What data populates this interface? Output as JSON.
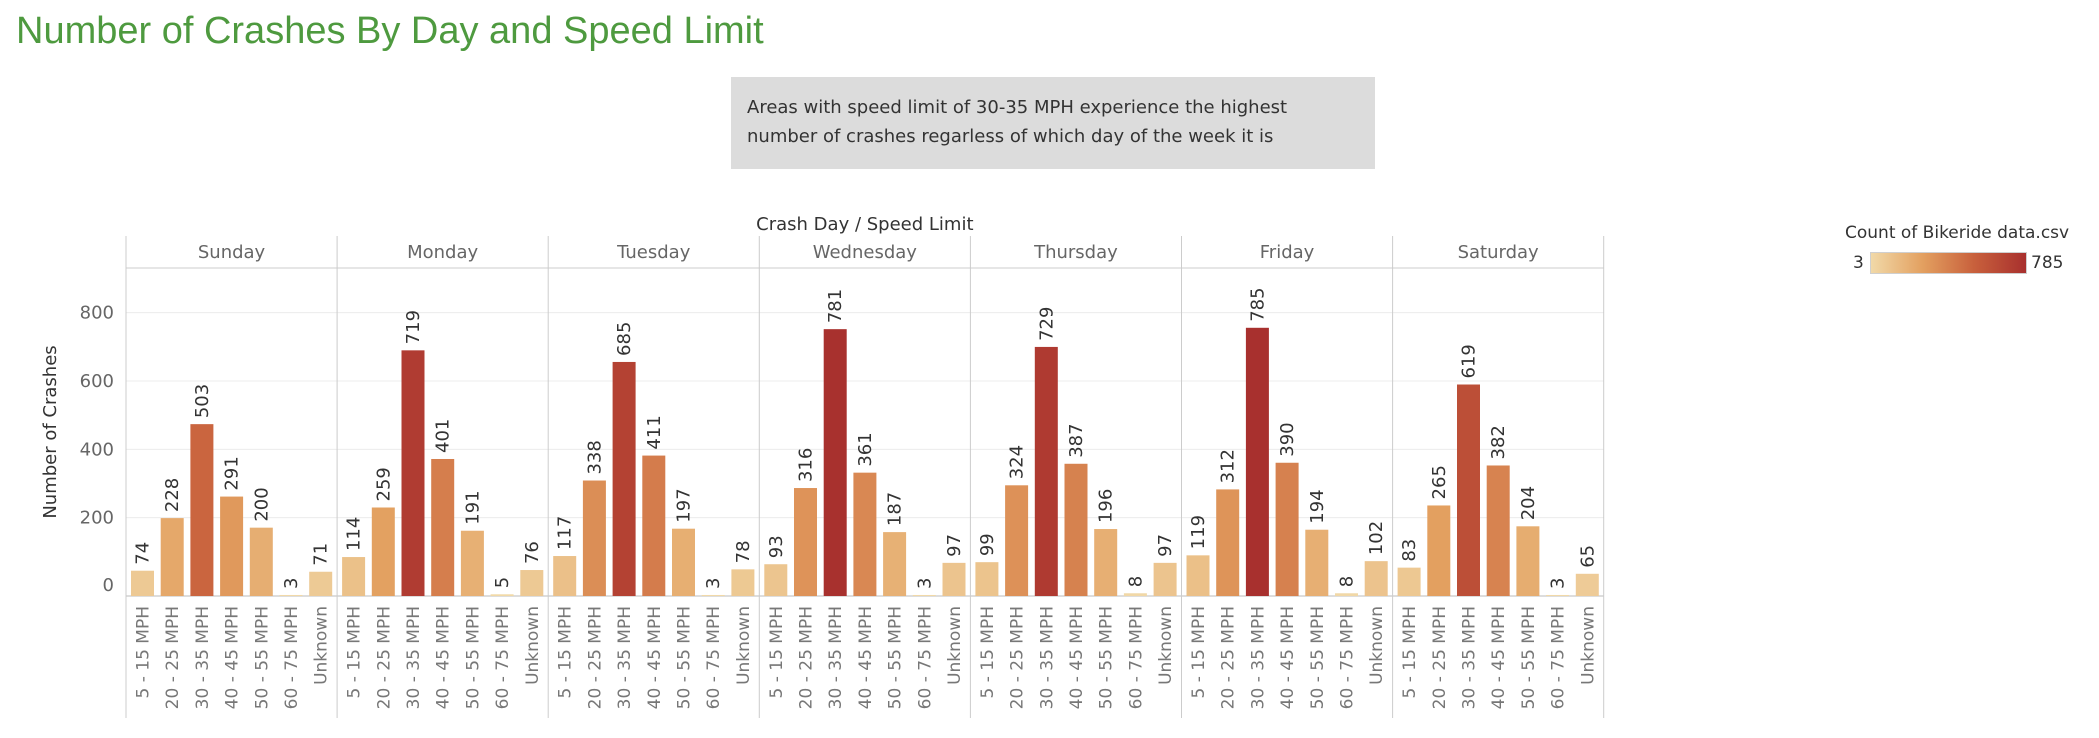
{
  "title": "Number of Crashes By Day and Speed Limit",
  "annotation": "Areas with speed limit of 30-35 MPH experience the highest number of crashes regarless of which day of the week it is",
  "legend": {
    "title": "Count of Bikeride data.csv",
    "min": "3",
    "max": "785"
  },
  "chart_data": {
    "type": "bar",
    "title": "Number of Crashes By Day and Speed Limit",
    "column_header": "Crash Day  /  Speed Limit",
    "ylabel": "Number of Crashes",
    "ylim": [
      0,
      960
    ],
    "yticks": [
      0,
      200,
      400,
      600,
      800
    ],
    "grid": true,
    "color_scale": {
      "min": 3,
      "max": 785,
      "colors": [
        "#f1d9a8",
        "#e3a060",
        "#c8603c",
        "#a8302e"
      ]
    },
    "days": [
      "Sunday",
      "Monday",
      "Tuesday",
      "Wednesday",
      "Thursday",
      "Friday",
      "Saturday"
    ],
    "categories": [
      "5 - 15 MPH",
      "20 - 25 MPH",
      "30 - 35 MPH",
      "40 - 45 MPH",
      "50 - 55 MPH",
      "60 - 75 MPH",
      "Unknown"
    ],
    "values": [
      [
        74,
        228,
        503,
        291,
        200,
        3,
        71
      ],
      [
        114,
        259,
        719,
        401,
        191,
        5,
        76
      ],
      [
        117,
        338,
        685,
        411,
        197,
        3,
        78
      ],
      [
        93,
        316,
        781,
        361,
        187,
        3,
        97
      ],
      [
        99,
        324,
        729,
        387,
        196,
        8,
        97
      ],
      [
        119,
        312,
        785,
        390,
        194,
        8,
        102
      ],
      [
        83,
        265,
        619,
        382,
        204,
        3,
        65
      ]
    ]
  }
}
